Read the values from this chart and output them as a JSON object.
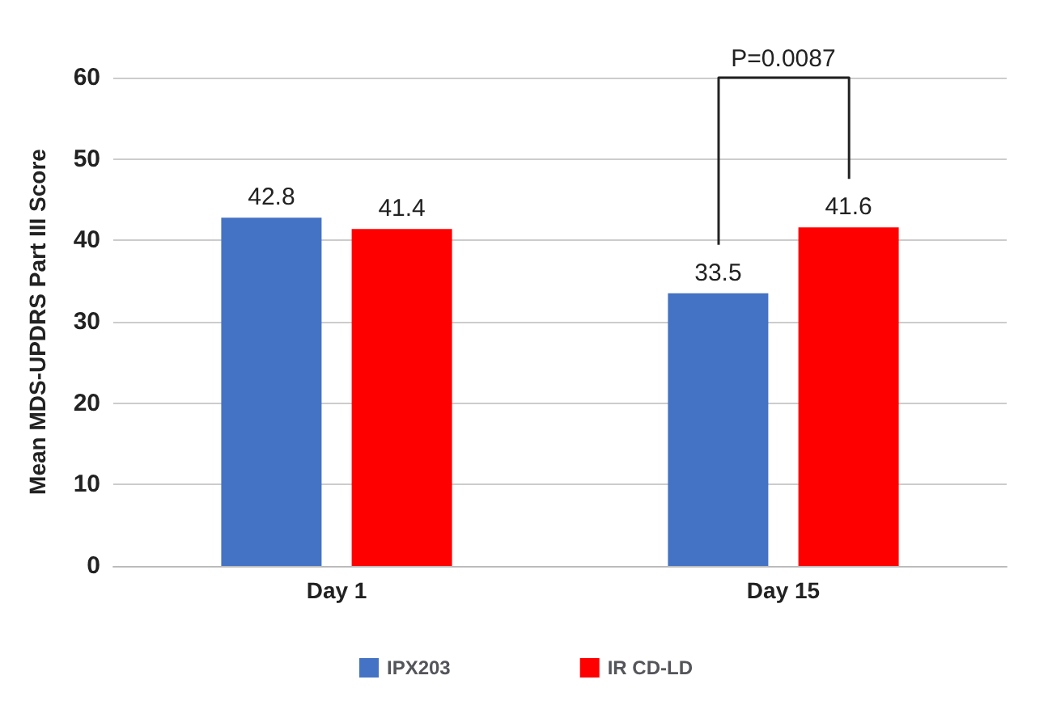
{
  "chart_data": {
    "type": "bar",
    "ylabel": "Mean MDS-UPDRS Part III Score",
    "categories": [
      "Day 1",
      "Day 15"
    ],
    "series": [
      {
        "name": "IPX203",
        "color": "#4472c4",
        "values": [
          42.8,
          33.5
        ]
      },
      {
        "name": "IR CD-LD",
        "color": "#ff0000",
        "values": [
          41.4,
          41.6
        ]
      }
    ],
    "ylim": [
      0,
      60
    ],
    "yticks": [
      0,
      10,
      20,
      30,
      40,
      50,
      60
    ],
    "grid": "y",
    "legend": "bottom",
    "data_labels": true,
    "annotations": [
      "P=0.0087"
    ]
  }
}
